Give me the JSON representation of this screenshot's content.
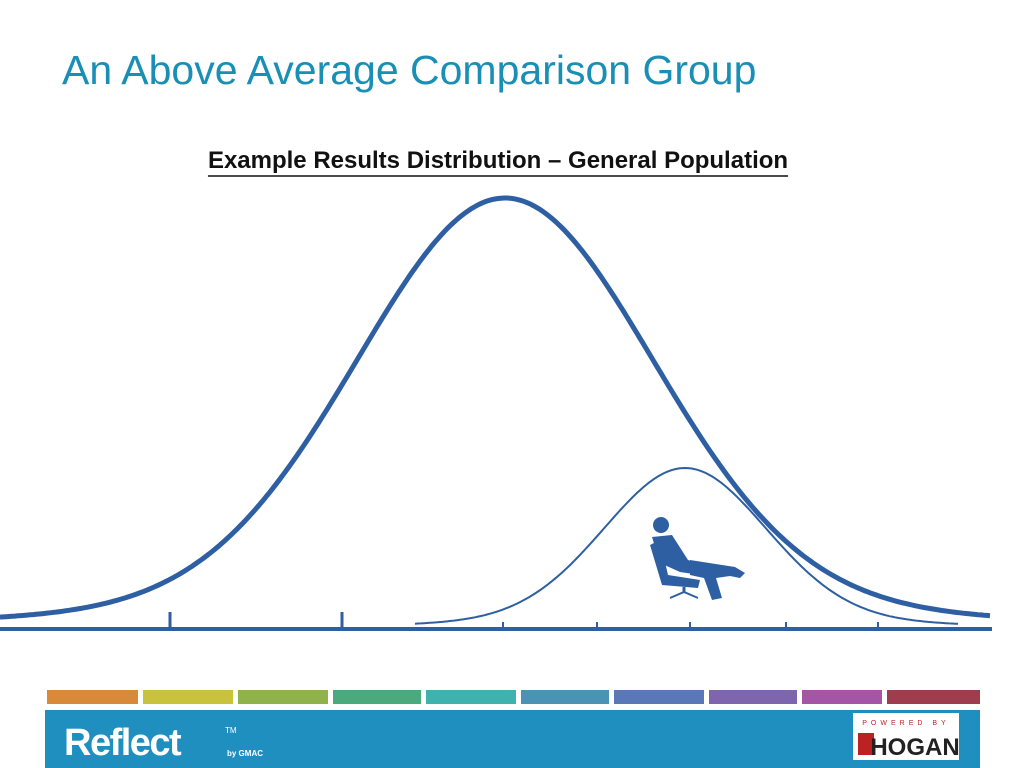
{
  "slide": {
    "title": "An Above Average Comparison Group",
    "subtitle": "Example Results Distribution – General Population",
    "footer": {
      "brand": "Reflect",
      "trademark": "TM",
      "byline": "by GMAC",
      "partner_tag": "POWERED BY",
      "partner": "HOGAN"
    }
  }
}
